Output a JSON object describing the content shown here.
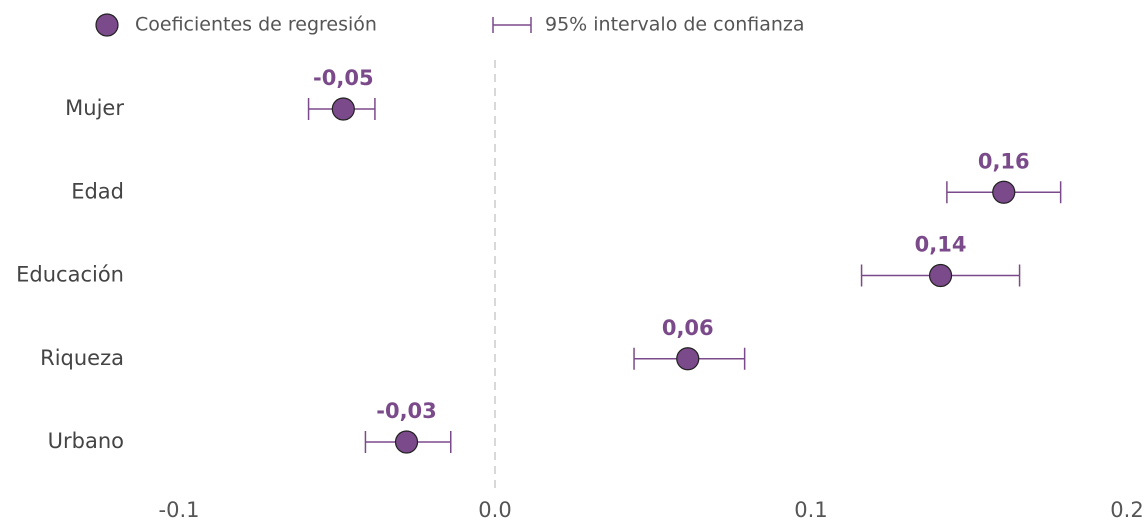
{
  "chart_data": {
    "type": "coefficient",
    "legend": {
      "point": "Coeficientes de regresión",
      "interval": "95% intervalo de confianza"
    },
    "categories": [
      "Mujer",
      "Edad",
      "Educación",
      "Riqueza",
      "Urbano"
    ],
    "values": [
      -0.048,
      0.161,
      0.141,
      0.061,
      -0.028
    ],
    "value_labels": [
      "-0,05",
      "0,16",
      "0,14",
      "0,06",
      "-0,03"
    ],
    "ci_low": [
      -0.059,
      0.143,
      0.116,
      0.044,
      -0.041
    ],
    "ci_high": [
      -0.038,
      0.179,
      0.166,
      0.079,
      -0.014
    ],
    "color": "#7b4a8a",
    "xlim": [
      -0.1,
      0.2
    ],
    "xticks": [
      -0.1,
      {
        "value": 0,
        "label": "0.0"
      },
      0.1,
      0.2
    ],
    "reference_line": 0
  }
}
